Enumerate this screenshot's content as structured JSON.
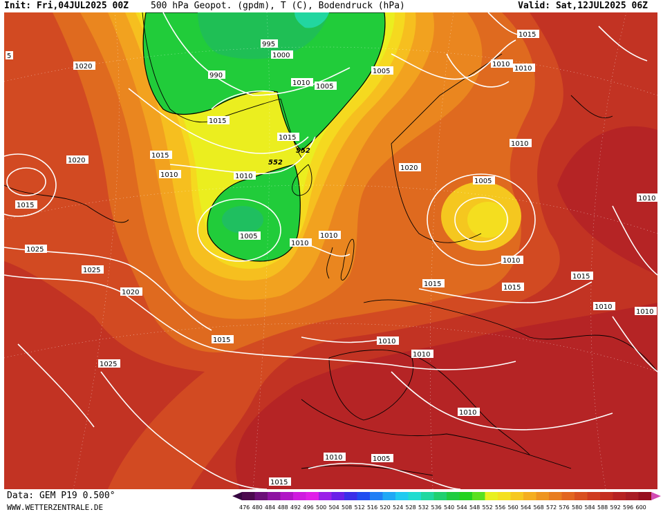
{
  "header": {
    "init": "Init: Fri,04JUL2025 00Z",
    "title": "500 hPa Geopot. (gpdm), T (C), Bodendruck (hPa)",
    "valid": "Valid: Sat,12JUL2025 06Z"
  },
  "footer": {
    "source": "Data: GEM P19 0.500°",
    "site": "WWW.WETTERZENTRALE.DE"
  },
  "legend": {
    "values": [
      "476",
      "480",
      "484",
      "488",
      "492",
      "496",
      "500",
      "504",
      "508",
      "512",
      "516",
      "520",
      "524",
      "528",
      "532",
      "536",
      "540",
      "544",
      "548",
      "552",
      "556",
      "560",
      "564",
      "568",
      "572",
      "576",
      "580",
      "584",
      "588",
      "592",
      "596",
      "600"
    ],
    "colors": [
      "#4b0a4f",
      "#6b0f78",
      "#8d12a2",
      "#b016c6",
      "#cf1bdf",
      "#e01fe8",
      "#9a20e8",
      "#6a20e8",
      "#3a2fe8",
      "#1f4df0",
      "#1f7ff5",
      "#1fa8f5",
      "#1fcaf0",
      "#1fdcd0",
      "#1fd8a0",
      "#1fd070",
      "#1fcc40",
      "#22d21f",
      "#5ae01f",
      "#e8f01f",
      "#f4e01f",
      "#f6c81f",
      "#f4ae1f",
      "#ee951f",
      "#e87d1f",
      "#e2661f",
      "#d9501f",
      "#cf3c1f",
      "#c42e20",
      "#b62222",
      "#a81c24",
      "#960f1e"
    ],
    "arrow_left_color": "#350640",
    "arrow_right_color": "#d24bb4"
  },
  "map_labels": {
    "contour_552": "552",
    "isobars": [
      {
        "text": "1010"
      },
      {
        "text": "995"
      },
      {
        "text": "1000"
      },
      {
        "text": "990"
      },
      {
        "text": "1010"
      },
      {
        "text": "1005"
      },
      {
        "text": "1005"
      },
      {
        "text": "1015"
      },
      {
        "text": "1010"
      },
      {
        "text": "1010"
      },
      {
        "text": "1020"
      },
      {
        "text": "1015"
      },
      {
        "text": "1015"
      },
      {
        "text": "1015"
      },
      {
        "text": "1010"
      },
      {
        "text": "1020"
      },
      {
        "text": "1015"
      },
      {
        "text": "1010"
      },
      {
        "text": "1020"
      },
      {
        "text": "1010"
      },
      {
        "text": "1005"
      },
      {
        "text": "1010"
      },
      {
        "text": "1010"
      },
      {
        "text": "1005"
      },
      {
        "text": "1010"
      },
      {
        "text": "1010"
      },
      {
        "text": "1025"
      },
      {
        "text": "1025"
      },
      {
        "text": "1020"
      },
      {
        "text": "1015"
      },
      {
        "text": "1015"
      },
      {
        "text": "1015"
      },
      {
        "text": "1015"
      },
      {
        "text": "1010"
      },
      {
        "text": "1010"
      },
      {
        "text": "1010"
      },
      {
        "text": "1010"
      },
      {
        "text": "1025"
      },
      {
        "text": "1010"
      },
      {
        "text": "1010"
      },
      {
        "text": "1005"
      },
      {
        "text": "1015"
      },
      {
        "text": "5"
      }
    ]
  }
}
